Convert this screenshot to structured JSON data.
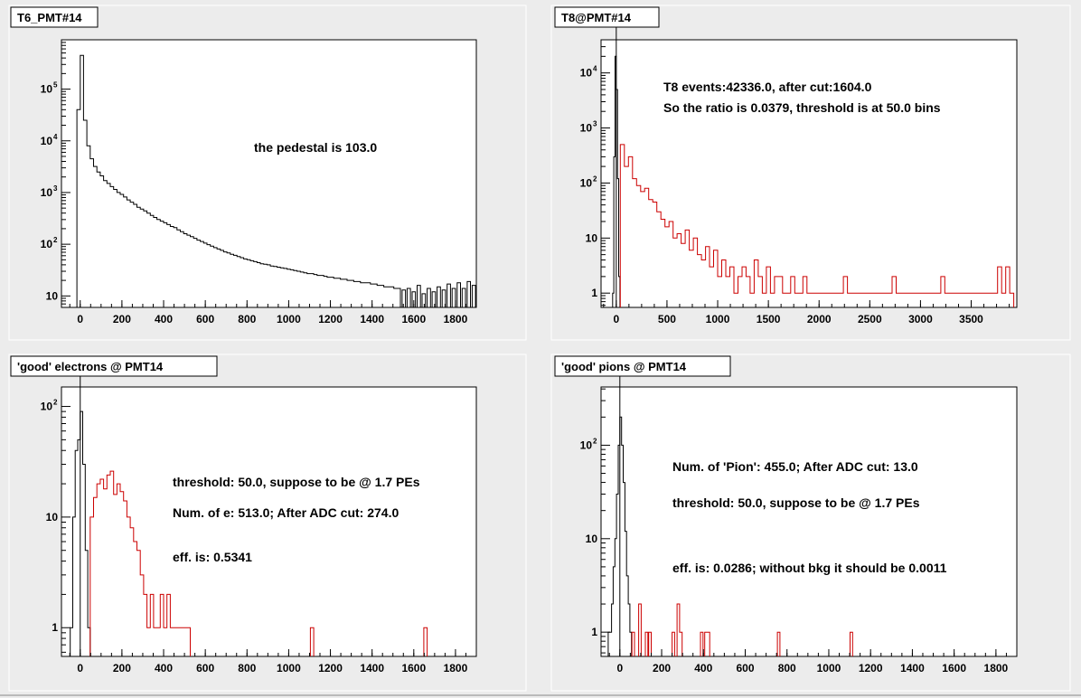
{
  "chart_data": [
    {
      "type": "histogram",
      "title": "T6_PMT#14",
      "xlim": [
        -90,
        1900
      ],
      "ylim": [
        6,
        900000
      ],
      "yscale": "log",
      "x_ticks": [
        0,
        200,
        400,
        600,
        800,
        1000,
        1200,
        1400,
        1600,
        1800
      ],
      "y_ticks": [
        {
          "base": "10",
          "exp": ""
        },
        {
          "base": "10",
          "exp": "2"
        },
        {
          "base": "10",
          "exp": "3"
        },
        {
          "base": "10",
          "exp": "4"
        },
        {
          "base": "10",
          "exp": "5"
        }
      ],
      "y_tick_values": [
        10,
        100,
        1000,
        10000,
        100000
      ],
      "annotations": [
        "the pedestal is 103.0"
      ],
      "series": [
        {
          "color": "#000000",
          "bin_width": 16,
          "x": [
            -8,
            8,
            24,
            40,
            56,
            72,
            88,
            104,
            120,
            136,
            152,
            168,
            184,
            200,
            216,
            232,
            248,
            264,
            280,
            296,
            312,
            328,
            344,
            360,
            376,
            392,
            408,
            424,
            440,
            456,
            472,
            488,
            504,
            520,
            536,
            552,
            568,
            584,
            600,
            616,
            632,
            648,
            664,
            680,
            696,
            712,
            728,
            744,
            760,
            776,
            792,
            808,
            824,
            840,
            856,
            872,
            888,
            904,
            920,
            936,
            952,
            968,
            984,
            1000,
            1016,
            1032,
            1048,
            1064,
            1080,
            1096,
            1112,
            1128,
            1144,
            1160,
            1176,
            1192,
            1208,
            1224,
            1240,
            1256,
            1272,
            1288,
            1304,
            1320,
            1336,
            1352,
            1368,
            1384,
            1400,
            1416,
            1432,
            1448,
            1464,
            1480,
            1496,
            1512,
            1528,
            1552,
            1576,
            1600,
            1624,
            1648,
            1672,
            1696,
            1720,
            1744,
            1768,
            1792,
            1816,
            1840,
            1864,
            1888
          ],
          "values": [
            40000,
            450000,
            25000,
            8000,
            4500,
            3200,
            2500,
            2100,
            1700,
            1500,
            1300,
            1150,
            1000,
            920,
            820,
            720,
            650,
            590,
            520,
            480,
            440,
            400,
            360,
            330,
            300,
            280,
            260,
            240,
            220,
            210,
            190,
            175,
            160,
            150,
            140,
            130,
            120,
            113,
            105,
            98,
            92,
            86,
            81,
            76,
            71,
            68,
            64,
            61,
            58,
            55,
            52,
            50,
            48,
            46,
            44,
            42,
            41,
            40,
            38,
            37,
            36,
            35,
            34,
            33,
            32,
            31,
            30,
            29,
            28,
            27,
            27,
            26,
            25,
            25,
            24,
            23,
            23,
            22,
            22,
            21,
            21,
            20,
            20,
            19,
            19,
            18,
            18,
            18,
            17,
            17,
            16,
            16,
            15,
            15,
            15,
            14,
            14,
            13,
            14,
            12,
            16,
            11,
            14,
            12,
            15,
            13,
            17,
            14,
            18,
            14,
            19,
            16
          ],
          "tail_left_x": -58,
          "tail_left_value": 0
        }
      ]
    },
    {
      "type": "histogram",
      "title": "T8@PMT#14",
      "xlim": [
        -150,
        3950
      ],
      "ylim": [
        0.55,
        40000
      ],
      "yscale": "log",
      "x_ticks": [
        0,
        500,
        1000,
        1500,
        2000,
        2500,
        3000,
        3500
      ],
      "y_ticks": [
        {
          "base": "1",
          "exp": ""
        },
        {
          "base": "10",
          "exp": ""
        },
        {
          "base": "10",
          "exp": "2"
        },
        {
          "base": "10",
          "exp": "3"
        },
        {
          "base": "10",
          "exp": "4"
        }
      ],
      "y_tick_values": [
        1,
        10,
        100,
        1000,
        10000
      ],
      "vline_x": 0,
      "annotations": [
        "T8 events:42336.0,  after cut:1604.0",
        "So the ratio is 0.0379, threshold is at 50.0 bins"
      ],
      "series": [
        {
          "color": "#000000",
          "bin_width": 12,
          "x": [
            -30,
            -18,
            -6,
            6,
            18,
            30
          ],
          "values": [
            1,
            300,
            20000,
            5000,
            120,
            2
          ]
        },
        {
          "color": "#cc0000",
          "bin_width": 40,
          "x": [
            60,
            100,
            140,
            180,
            220,
            260,
            300,
            340,
            380,
            420,
            460,
            500,
            540,
            580,
            620,
            660,
            700,
            740,
            780,
            820,
            860,
            900,
            940,
            980,
            1020,
            1060,
            1100,
            1140,
            1180,
            1220,
            1260,
            1300,
            1340,
            1380,
            1420,
            1460,
            1500,
            1540,
            1580,
            1620,
            1660,
            1700,
            1740,
            1780,
            1820,
            1860,
            1900,
            1940,
            1980,
            2020,
            2060,
            2100,
            2140,
            2180,
            2220,
            2260,
            2300,
            2340,
            2380,
            2420,
            2460,
            2500,
            2540,
            2580,
            2620,
            2660,
            2700,
            2740,
            2780,
            2820,
            2860,
            2900,
            2940,
            2980,
            3020,
            3060,
            3100,
            3140,
            3180,
            3220,
            3260,
            3300,
            3340,
            3380,
            3420,
            3460,
            3500,
            3540,
            3580,
            3620,
            3660,
            3700,
            3740,
            3780,
            3820,
            3860,
            3900
          ],
          "values": [
            500,
            200,
            300,
            120,
            90,
            70,
            80,
            50,
            45,
            30,
            22,
            16,
            20,
            10,
            12,
            8,
            14,
            6,
            10,
            5,
            4,
            7,
            3,
            6,
            2,
            4,
            2,
            3,
            1,
            2,
            3,
            2,
            1,
            4,
            2,
            1,
            3,
            1,
            2,
            2,
            1,
            1,
            2,
            1,
            1,
            2,
            1,
            1,
            1,
            1,
            1,
            1,
            1,
            1,
            1,
            2,
            1,
            1,
            1,
            1,
            1,
            1,
            1,
            1,
            1,
            1,
            1,
            2,
            1,
            1,
            1,
            1,
            1,
            1,
            1,
            1,
            1,
            1,
            1,
            2,
            1,
            1,
            1,
            1,
            1,
            1,
            1,
            1,
            1,
            1,
            1,
            1,
            1,
            3,
            1,
            3,
            1
          ]
        }
      ]
    },
    {
      "type": "histogram",
      "title": "'good' electrons @ PMT14",
      "xlim": [
        -90,
        1900
      ],
      "ylim": [
        0.55,
        150
      ],
      "yscale": "log",
      "x_ticks": [
        0,
        200,
        400,
        600,
        800,
        1000,
        1200,
        1400,
        1600,
        1800
      ],
      "y_ticks": [
        {
          "base": "1",
          "exp": ""
        },
        {
          "base": "10",
          "exp": ""
        },
        {
          "base": "10",
          "exp": "2"
        }
      ],
      "y_tick_values": [
        1,
        10,
        100
      ],
      "vline_x": 0,
      "annotations": [
        "threshold: 50.0, suppose to be @ 1.7 PEs",
        "Num. of e:  513.0;  After ADC cut: 274.0",
        "eff. is: 0.5341"
      ],
      "series": [
        {
          "color": "#000000",
          "bin_width": 12,
          "x": [
            -42,
            -30,
            -18,
            -6,
            6,
            18,
            30,
            42
          ],
          "values": [
            1,
            10,
            40,
            50,
            90,
            30,
            5,
            1
          ]
        },
        {
          "color": "#cc0000",
          "bin_width": 16,
          "x": [
            56,
            72,
            88,
            104,
            120,
            136,
            152,
            168,
            184,
            200,
            216,
            232,
            248,
            264,
            280,
            296,
            312,
            328,
            344,
            360,
            376,
            392,
            408,
            424,
            440,
            456,
            472,
            488,
            504,
            520,
            1112,
            1656
          ],
          "values": [
            10,
            15,
            20,
            22,
            18,
            24,
            26,
            16,
            20,
            17,
            14,
            10,
            8,
            6,
            5,
            3,
            2,
            1,
            2,
            1,
            1,
            2,
            1,
            2,
            1,
            1,
            1,
            1,
            1,
            1,
            1,
            1
          ]
        }
      ]
    },
    {
      "type": "histogram",
      "title": "'good' pions @ PMT14",
      "xlim": [
        -90,
        1900
      ],
      "ylim": [
        0.55,
        420
      ],
      "yscale": "log",
      "x_ticks": [
        0,
        200,
        400,
        600,
        800,
        1000,
        1200,
        1400,
        1600,
        1800
      ],
      "y_ticks": [
        {
          "base": "1",
          "exp": ""
        },
        {
          "base": "10",
          "exp": ""
        },
        {
          "base": "10",
          "exp": "2"
        }
      ],
      "y_tick_values": [
        1,
        10,
        100
      ],
      "vline_x": 0,
      "annotations": [
        "Num. of 'Pion':  455.0;  After ADC cut:  13.0",
        "threshold: 50.0, suppose to be @ 1.7 PEs",
        "eff. is: 0.0286;  without bkg it should be 0.0011"
      ],
      "series": [
        {
          "color": "#000000",
          "bin_width": 8,
          "x": [
            -52,
            -44,
            -36,
            -28,
            -20,
            -12,
            -4,
            4,
            12,
            20,
            28,
            36,
            44,
            52
          ],
          "values": [
            1,
            1,
            2,
            5,
            10,
            30,
            100,
            200,
            100,
            40,
            12,
            4,
            2,
            1
          ]
        },
        {
          "color": "#cc0000",
          "bin_width": 12,
          "x": [
            64,
            96,
            128,
            144,
            256,
            280,
            292,
            392,
            412,
            424,
            760,
            1108
          ],
          "values": [
            1,
            2,
            1,
            1,
            1,
            2,
            1,
            1,
            1,
            1,
            1,
            1
          ]
        }
      ]
    }
  ]
}
